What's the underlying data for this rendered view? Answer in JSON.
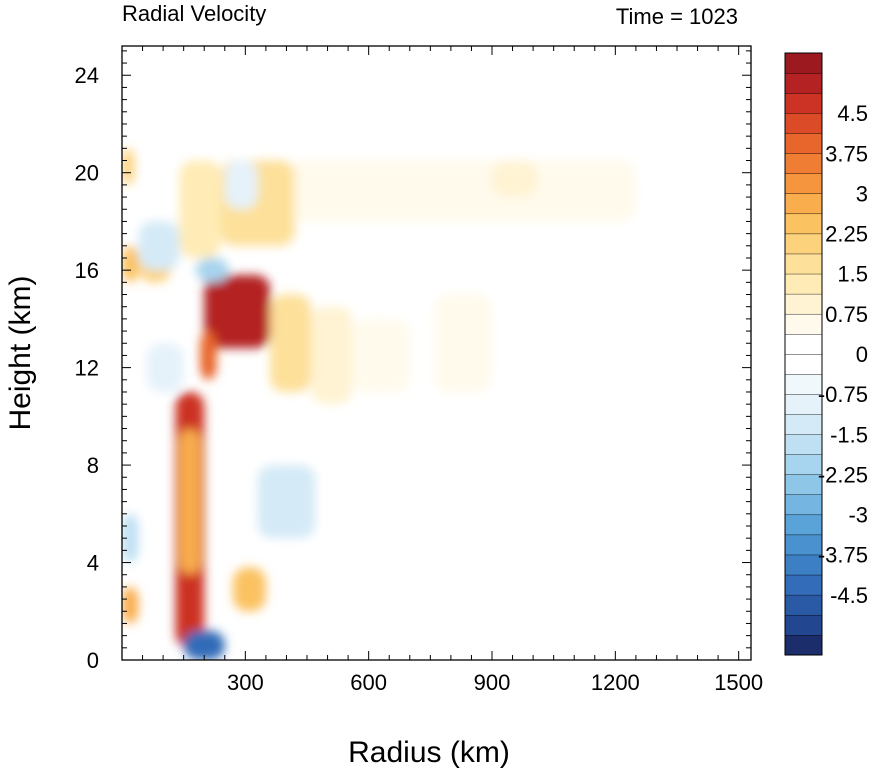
{
  "chart_data": {
    "type": "heatmap",
    "title": "Radial Velocity",
    "subtitle": "Time = 1023",
    "xlabel": "Radius (km)",
    "ylabel": "Height (km)",
    "xlim": [
      0,
      1530
    ],
    "ylim": [
      0,
      25.2
    ],
    "xticks": [
      300,
      600,
      900,
      1200,
      1500
    ],
    "xtick_labels": [
      "300",
      "600",
      "900",
      "1200",
      "1500"
    ],
    "yticks": [
      0,
      4,
      8,
      12,
      16,
      20,
      24
    ],
    "ytick_labels": [
      "0",
      "4",
      "8",
      "12",
      "16",
      "20",
      "24"
    ],
    "colorbar": {
      "min": -5.625,
      "max": 5.625,
      "step": 0.375,
      "labels": [
        "4.5",
        "3.75",
        "3",
        "2.25",
        "1.5",
        "0.75",
        "0",
        "-0.75",
        "-1.5",
        "-2.25",
        "-3",
        "-3.75",
        "-4.5"
      ],
      "label_values": [
        4.5,
        3.75,
        3,
        2.25,
        1.5,
        0.75,
        0,
        -0.75,
        -1.5,
        -2.25,
        -3,
        -3.75,
        -4.5
      ],
      "colors": [
        "#1b2d6b",
        "#22468f",
        "#2a5aa5",
        "#336cb8",
        "#3d7fc4",
        "#4a92cf",
        "#5aa3d8",
        "#74b6e1",
        "#8ec6e8",
        "#a7d4ee",
        "#bfe0f3",
        "#d4eaf7",
        "#e5f2fa",
        "#f1f8fc",
        "#ffffff",
        "#ffffff",
        "#fffaec",
        "#fff3d3",
        "#ffebb5",
        "#fde09a",
        "#fcd27d",
        "#fbc262",
        "#f9ad4d",
        "#f5963e",
        "#ef7e34",
        "#e8652c",
        "#dc4b27",
        "#cc3324",
        "#b42223",
        "#9c1a1f"
      ]
    },
    "regions": [
      {
        "r": [
          200,
          360
        ],
        "z": [
          12.8,
          15.8
        ],
        "v": 5.2
      },
      {
        "r": [
          190,
          230
        ],
        "z": [
          11.5,
          13.5
        ],
        "v": 4.0
      },
      {
        "r": [
          360,
          460
        ],
        "z": [
          11.0,
          15.0
        ],
        "v": 1.6
      },
      {
        "r": [
          460,
          560
        ],
        "z": [
          10.5,
          14.5
        ],
        "v": 0.9
      },
      {
        "r": [
          560,
          700
        ],
        "z": [
          11.0,
          14.0
        ],
        "v": 0.5
      },
      {
        "r": [
          760,
          900
        ],
        "z": [
          11.0,
          15.0
        ],
        "v": 0.5
      },
      {
        "r": [
          400,
          1250
        ],
        "z": [
          18.0,
          20.5
        ],
        "v": 0.6
      },
      {
        "r": [
          900,
          1010
        ],
        "z": [
          19.0,
          20.5
        ],
        "v": 1.0
      },
      {
        "r": [
          130,
          200
        ],
        "z": [
          0.5,
          11.0
        ],
        "v": 4.8
      },
      {
        "r": [
          140,
          190
        ],
        "z": [
          3.5,
          9.5
        ],
        "v": 2.8
      },
      {
        "r": [
          0,
          40
        ],
        "z": [
          1.5,
          3.0
        ],
        "v": 2.8
      },
      {
        "r": [
          0,
          40
        ],
        "z": [
          15.5,
          17.0
        ],
        "v": 2.5
      },
      {
        "r": [
          0,
          30
        ],
        "z": [
          19.5,
          21.0
        ],
        "v": 2.2
      },
      {
        "r": [
          270,
          350
        ],
        "z": [
          2.0,
          3.8
        ],
        "v": 2.4
      },
      {
        "r": [
          40,
          120
        ],
        "z": [
          15.5,
          17.0
        ],
        "v": 2.0
      },
      {
        "r": [
          140,
          240
        ],
        "z": [
          16.5,
          20.5
        ],
        "v": 1.3
      },
      {
        "r": [
          240,
          420
        ],
        "z": [
          17.0,
          20.5
        ],
        "v": 1.5
      },
      {
        "r": [
          150,
          250
        ],
        "z": [
          0.0,
          1.2
        ],
        "v": -4.3
      },
      {
        "r": [
          0,
          40
        ],
        "z": [
          4.0,
          6.0
        ],
        "v": -1.6
      },
      {
        "r": [
          40,
          140
        ],
        "z": [
          16.0,
          18.0
        ],
        "v": -1.3
      },
      {
        "r": [
          180,
          260
        ],
        "z": [
          15.5,
          16.5
        ],
        "v": -2.2
      },
      {
        "r": [
          330,
          470
        ],
        "z": [
          5.0,
          8.0
        ],
        "v": -1.3
      },
      {
        "r": [
          60,
          150
        ],
        "z": [
          11.0,
          13.0
        ],
        "v": -1.0
      },
      {
        "r": [
          250,
          330
        ],
        "z": [
          18.5,
          20.5
        ],
        "v": -0.9
      },
      {
        "r": [
          880,
          980
        ],
        "z": [
          3.0,
          6.0
        ],
        "v": -0.3
      }
    ]
  }
}
